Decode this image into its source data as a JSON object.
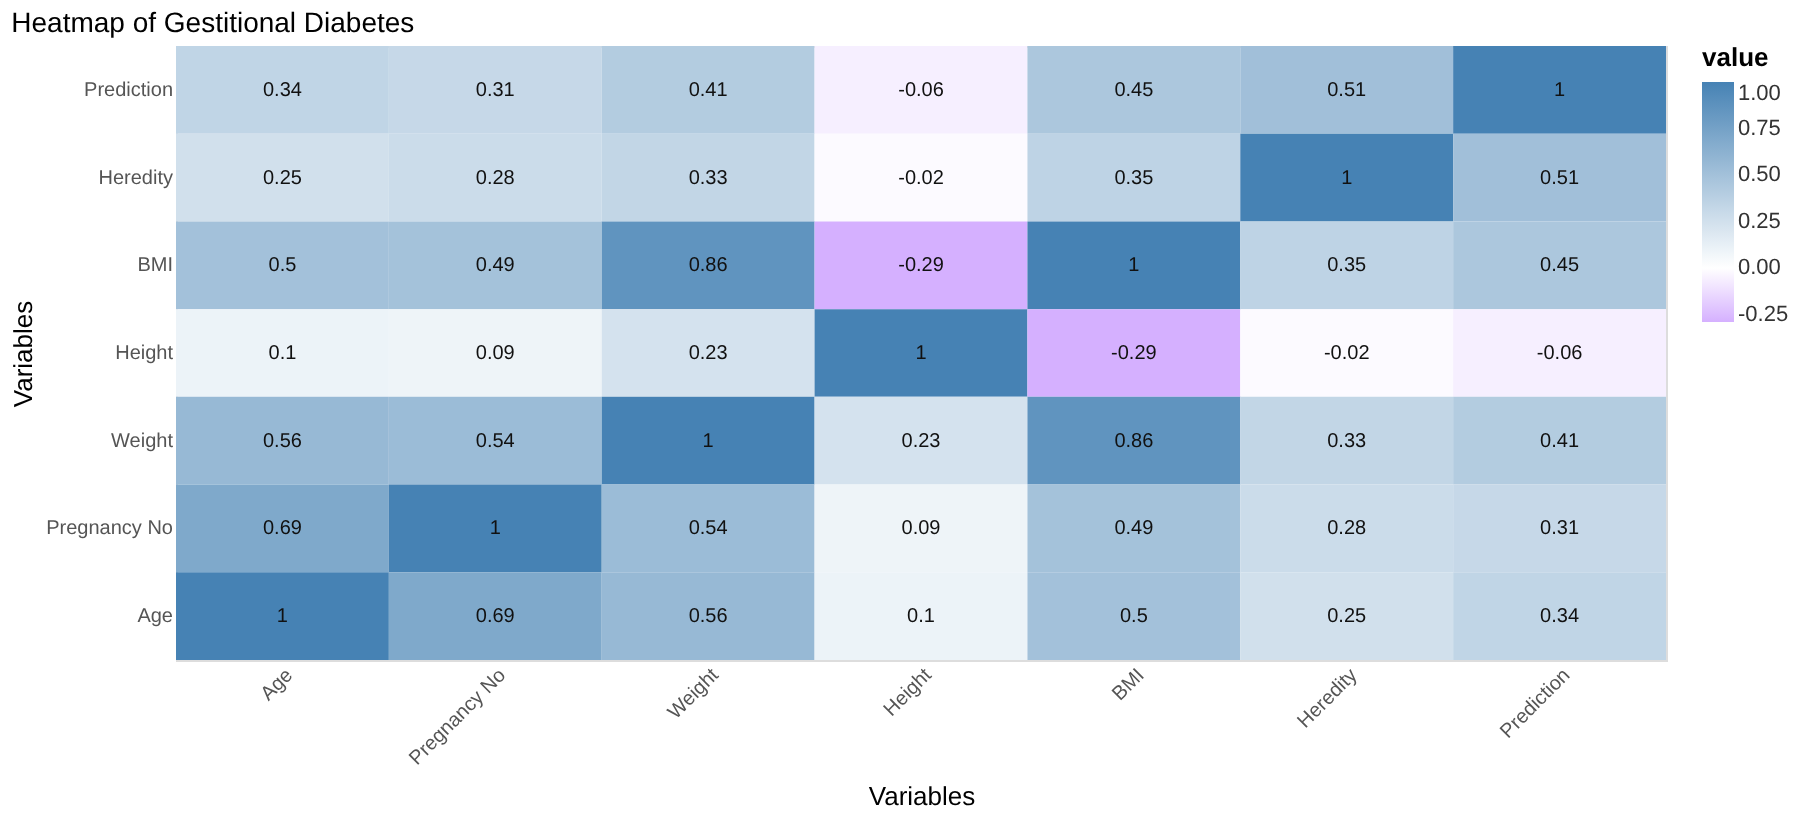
{
  "chart_data": {
    "type": "heatmap",
    "title": "Heatmap of Gestitional Diabetes",
    "xlabel": "Variables",
    "ylabel": "Variables",
    "clabel": "value",
    "categories": [
      "Age",
      "Pregnancy No",
      "Weight",
      "Height",
      "BMI",
      "Heredity",
      "Prediction"
    ],
    "y_categories": [
      "Prediction",
      "Heredity",
      "BMI",
      "Height",
      "Weight",
      "Pregnancy No",
      "Age"
    ],
    "cells": [
      [
        0.34,
        0.31,
        0.41,
        -0.06,
        0.45,
        0.51,
        1
      ],
      [
        0.25,
        0.28,
        0.33,
        -0.02,
        0.35,
        1,
        0.51
      ],
      [
        0.5,
        0.49,
        0.86,
        -0.29,
        1,
        0.35,
        0.45
      ],
      [
        0.1,
        0.09,
        0.23,
        1,
        -0.29,
        -0.02,
        -0.06
      ],
      [
        0.56,
        0.54,
        1,
        0.23,
        0.86,
        0.33,
        0.41
      ],
      [
        0.69,
        1,
        0.54,
        0.09,
        0.49,
        0.28,
        0.31
      ],
      [
        1,
        0.69,
        0.56,
        0.1,
        0.5,
        0.25,
        0.34
      ]
    ],
    "clim": [
      -0.29,
      1
    ],
    "cticks": [
      {
        "value": -0.25,
        "label": "-0.25"
      },
      {
        "value": 0,
        "label": "0.00"
      },
      {
        "value": 0.25,
        "label": "0.25"
      },
      {
        "value": 0.5,
        "label": "0.50"
      },
      {
        "value": 0.75,
        "label": "0.75"
      },
      {
        "value": 1,
        "label": "1.00"
      }
    ],
    "data_labels": true
  }
}
